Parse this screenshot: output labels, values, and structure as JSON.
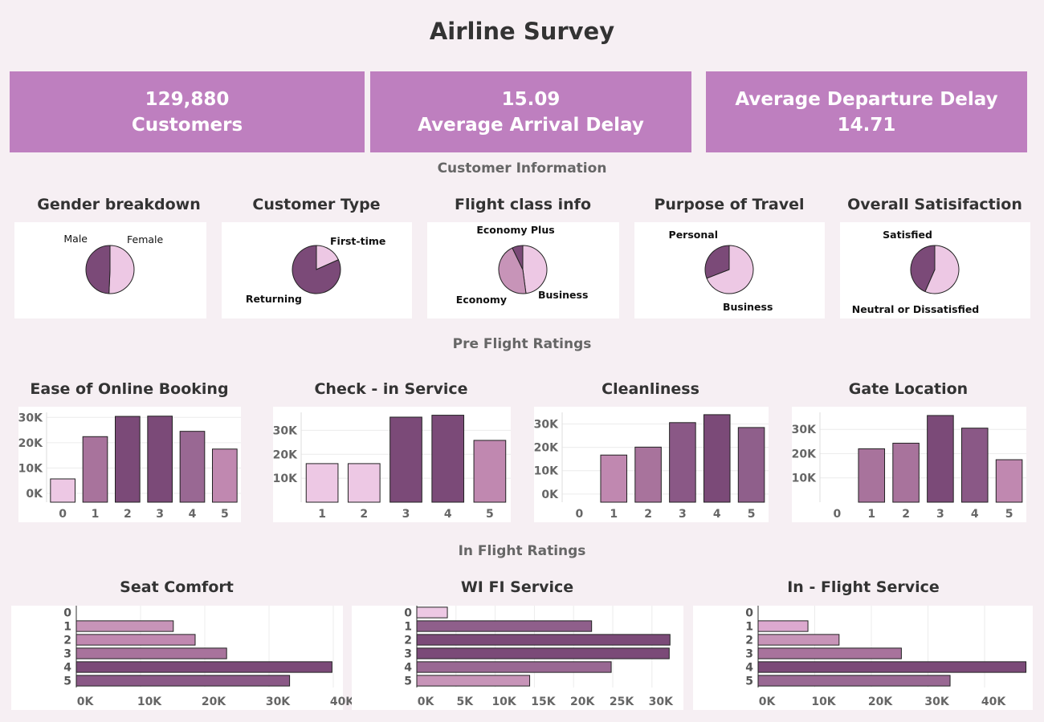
{
  "title": "Airline Survey",
  "kpis": [
    {
      "line1": "129,880",
      "line2": "Customers"
    },
    {
      "line1": "15.09",
      "line2": "Average Arrival Delay"
    },
    {
      "line1": "Average Departure Delay",
      "line2": "14.71"
    }
  ],
  "sections": {
    "customer_info": "Customer Information",
    "pre_flight": "Pre Flight Ratings",
    "in_flight": "In Flight Ratings"
  },
  "colors": {
    "background": "#f6eff3",
    "kpi": "#be7fbf",
    "dark": "#7b4a78",
    "light": "#edc8e4",
    "medium": "#c794b8"
  },
  "chart_data": [
    {
      "id": "gender",
      "type": "pie",
      "title": "Gender breakdown",
      "slices": [
        {
          "label": "Female",
          "value": 50.7,
          "color": "#edc8e4"
        },
        {
          "label": "Male",
          "value": 49.3,
          "color": "#7b4a78"
        }
      ]
    },
    {
      "id": "customer_type",
      "type": "pie",
      "title": "Customer Type",
      "slices": [
        {
          "label": "First-time",
          "value": 18.3,
          "color": "#edc8e4"
        },
        {
          "label": "Returning",
          "value": 81.7,
          "color": "#7b4a78"
        }
      ]
    },
    {
      "id": "flight_class",
      "type": "pie",
      "title": "Flight class info",
      "slices": [
        {
          "label": "Business",
          "value": 47.9,
          "color": "#edc8e4"
        },
        {
          "label": "Economy",
          "value": 44.9,
          "color": "#c794b8"
        },
        {
          "label": "Economy Plus",
          "value": 7.2,
          "color": "#7b4a78"
        }
      ]
    },
    {
      "id": "purpose",
      "type": "pie",
      "title": "Purpose of Travel",
      "slices": [
        {
          "label": "Business",
          "value": 69.1,
          "color": "#edc8e4"
        },
        {
          "label": "Personal",
          "value": 30.9,
          "color": "#7b4a78"
        }
      ]
    },
    {
      "id": "satisfaction",
      "type": "pie",
      "title": "Overall Satisifaction",
      "slices": [
        {
          "label": "Neutral or Dissatisfied",
          "value": 56.6,
          "color": "#edc8e4"
        },
        {
          "label": "Satisfied",
          "value": 43.4,
          "color": "#7b4a78"
        }
      ]
    },
    {
      "id": "online_booking",
      "type": "bar",
      "title": "Ease of Online Booking",
      "categories": [
        "0",
        "1",
        "2",
        "3",
        "4",
        "5"
      ],
      "values": [
        5700,
        22400,
        30400,
        30500,
        24500,
        17500
      ],
      "colors": [
        "#edc8e4",
        "#a8739c",
        "#7b4a78",
        "#7b4a78",
        "#996893",
        "#c088b0"
      ],
      "yticks": [
        {
          "v": 0,
          "l": "0K"
        },
        {
          "v": 10000,
          "l": "10K"
        },
        {
          "v": 20000,
          "l": "20K"
        },
        {
          "v": 30000,
          "l": "30K"
        }
      ],
      "ylim": [
        -3500,
        32000
      ]
    },
    {
      "id": "checkin",
      "type": "bar",
      "title": "Check - in Service",
      "categories": [
        "1",
        "2",
        "3",
        "4",
        "5"
      ],
      "values": [
        16100,
        16100,
        35500,
        36300,
        25800
      ],
      "colors": [
        "#edc8e4",
        "#edc8e4",
        "#7b4a78",
        "#7b4a78",
        "#c088b0"
      ],
      "yticks": [
        {
          "v": 10000,
          "l": "10K"
        },
        {
          "v": 20000,
          "l": "20K"
        },
        {
          "v": 30000,
          "l": "30K"
        }
      ],
      "ylim": [
        0,
        37500
      ]
    },
    {
      "id": "cleanliness",
      "type": "bar",
      "title": "Cleanliness",
      "categories": [
        "0",
        "1",
        "2",
        "3",
        "4",
        "5"
      ],
      "values": [
        14,
        16700,
        20100,
        30600,
        34000,
        28500
      ],
      "colors": [
        "#edc8e4",
        "#c088b0",
        "#a8739c",
        "#8a5886",
        "#7b4a78",
        "#8f5f8b"
      ],
      "yticks": [
        {
          "v": 0,
          "l": "0K"
        },
        {
          "v": 10000,
          "l": "10K"
        },
        {
          "v": 20000,
          "l": "20K"
        },
        {
          "v": 30000,
          "l": "30K"
        }
      ],
      "ylim": [
        -3500,
        35000
      ]
    },
    {
      "id": "gate",
      "type": "bar",
      "title": "Gate Location",
      "categories": [
        "0",
        "1",
        "2",
        "3",
        "4",
        "5"
      ],
      "values": [
        1,
        22000,
        24300,
        35700,
        30500,
        17500
      ],
      "colors": [
        "#edc8e4",
        "#a8739c",
        "#a8739c",
        "#7b4a78",
        "#8a5886",
        "#c088b0"
      ],
      "yticks": [
        {
          "v": 10000,
          "l": "10K"
        },
        {
          "v": 20000,
          "l": "20K"
        },
        {
          "v": 30000,
          "l": "30K"
        }
      ],
      "ylim": [
        0,
        37000
      ]
    },
    {
      "id": "seat",
      "type": "hbar",
      "title": "Seat Comfort",
      "categories": [
        "0",
        "1",
        "2",
        "3",
        "4",
        "5"
      ],
      "values": [
        1,
        15100,
        18500,
        23400,
        39800,
        33200
      ],
      "colors": [
        "#edc8e4",
        "#c794b8",
        "#c088b0",
        "#a8739c",
        "#7b4a78",
        "#8a5886"
      ],
      "xticks": [
        {
          "v": 0,
          "l": "0K"
        },
        {
          "v": 10000,
          "l": "10K"
        },
        {
          "v": 20000,
          "l": "20K"
        },
        {
          "v": 30000,
          "l": "30K"
        },
        {
          "v": 40000,
          "l": "40K"
        }
      ],
      "xlim": [
        0,
        41500
      ]
    },
    {
      "id": "wifi",
      "type": "hbar",
      "title": "WI FI Service",
      "categories": [
        "0",
        "1",
        "2",
        "3",
        "4",
        "5"
      ],
      "values": [
        3900,
        22300,
        32300,
        32200,
        24800,
        14400
      ],
      "colors": [
        "#edc8e4",
        "#8f5f8b",
        "#7b4a78",
        "#7b4a78",
        "#996893",
        "#c794b8"
      ],
      "xticks": [
        {
          "v": 0,
          "l": "0K"
        },
        {
          "v": 5000,
          "l": "5K"
        },
        {
          "v": 10000,
          "l": "10K"
        },
        {
          "v": 15000,
          "l": "15K"
        },
        {
          "v": 20000,
          "l": "20K"
        },
        {
          "v": 25000,
          "l": "25K"
        },
        {
          "v": 30000,
          "l": "30K"
        }
      ],
      "xlim": [
        0,
        33500
      ]
    },
    {
      "id": "inflight",
      "type": "hbar",
      "title": "In - Flight Service",
      "categories": [
        "0",
        "1",
        "2",
        "3",
        "4",
        "5"
      ],
      "values": [
        1,
        8800,
        14300,
        25300,
        47300,
        33900
      ],
      "colors": [
        "#edc8e4",
        "#dca9cf",
        "#c794b8",
        "#a8739c",
        "#7b4a78",
        "#996893"
      ],
      "xticks": [
        {
          "v": 0,
          "l": "0K"
        },
        {
          "v": 10000,
          "l": "10K"
        },
        {
          "v": 20000,
          "l": "20K"
        },
        {
          "v": 30000,
          "l": "30K"
        },
        {
          "v": 40000,
          "l": "40K"
        }
      ],
      "xlim": [
        0,
        48500
      ]
    }
  ]
}
